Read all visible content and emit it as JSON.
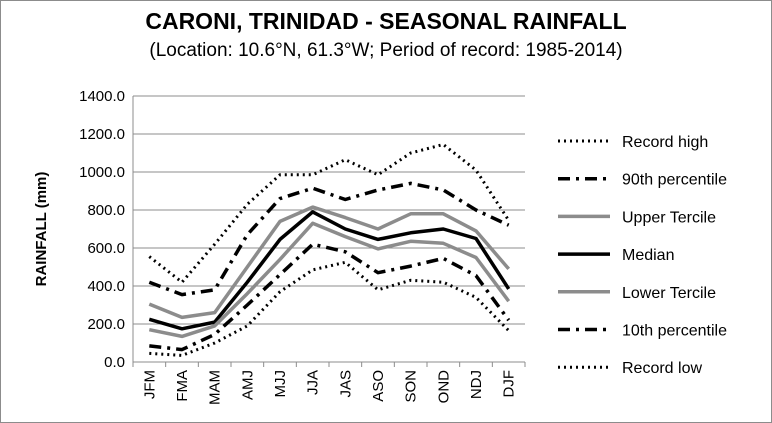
{
  "chart_data": {
    "type": "line",
    "title": "CARONI, TRINIDAD - SEASONAL RAINFALL",
    "subtitle": "(Location: 10.6°N, 61.3°W; Period of record: 1985-2014)",
    "xlabel": "",
    "ylabel": "RAINFALL (mm)",
    "categories": [
      "JFM",
      "FMA",
      "MAM",
      "AMJ",
      "MJJ",
      "JJA",
      "JAS",
      "ASO",
      "SON",
      "OND",
      "NDJ",
      "DJF"
    ],
    "ylim": [
      0,
      1400
    ],
    "yticks": [
      "0.0",
      "200.0",
      "400.0",
      "600.0",
      "800.0",
      "1000.0",
      "1200.0",
      "1400.0"
    ],
    "grid": "horizontal",
    "legend_position": "right",
    "series": [
      {
        "name": "Record high",
        "color": "#000000",
        "style": "dotted",
        "width": 3,
        "values": [
          555,
          420,
          620,
          830,
          985,
          985,
          1065,
          985,
          1100,
          1145,
          1010,
          745
        ]
      },
      {
        "name": "90th percentile",
        "color": "#000000",
        "style": "dashdot",
        "width": 3.5,
        "values": [
          420,
          355,
          380,
          670,
          860,
          915,
          855,
          905,
          940,
          905,
          800,
          720
        ]
      },
      {
        "name": "Upper Tercile",
        "color": "#8c8c8c",
        "style": "solid",
        "width": 3.5,
        "values": [
          305,
          235,
          260,
          500,
          740,
          815,
          760,
          700,
          780,
          780,
          690,
          490
        ]
      },
      {
        "name": "Median",
        "color": "#000000",
        "style": "solid",
        "width": 3.5,
        "values": [
          225,
          175,
          210,
          420,
          645,
          790,
          700,
          645,
          680,
          700,
          650,
          385
        ]
      },
      {
        "name": "Lower Tercile",
        "color": "#8c8c8c",
        "style": "solid",
        "width": 3.5,
        "values": [
          170,
          135,
          190,
          360,
          540,
          730,
          660,
          595,
          635,
          625,
          550,
          320
        ]
      },
      {
        "name": "10th percentile",
        "color": "#000000",
        "style": "dashdot",
        "width": 3.5,
        "values": [
          85,
          65,
          145,
          300,
          460,
          620,
          580,
          470,
          505,
          545,
          455,
          220
        ]
      },
      {
        "name": "Record low",
        "color": "#000000",
        "style": "dotted",
        "width": 3,
        "values": [
          45,
          35,
          100,
          190,
          370,
          485,
          525,
          380,
          430,
          420,
          340,
          165
        ]
      }
    ]
  }
}
